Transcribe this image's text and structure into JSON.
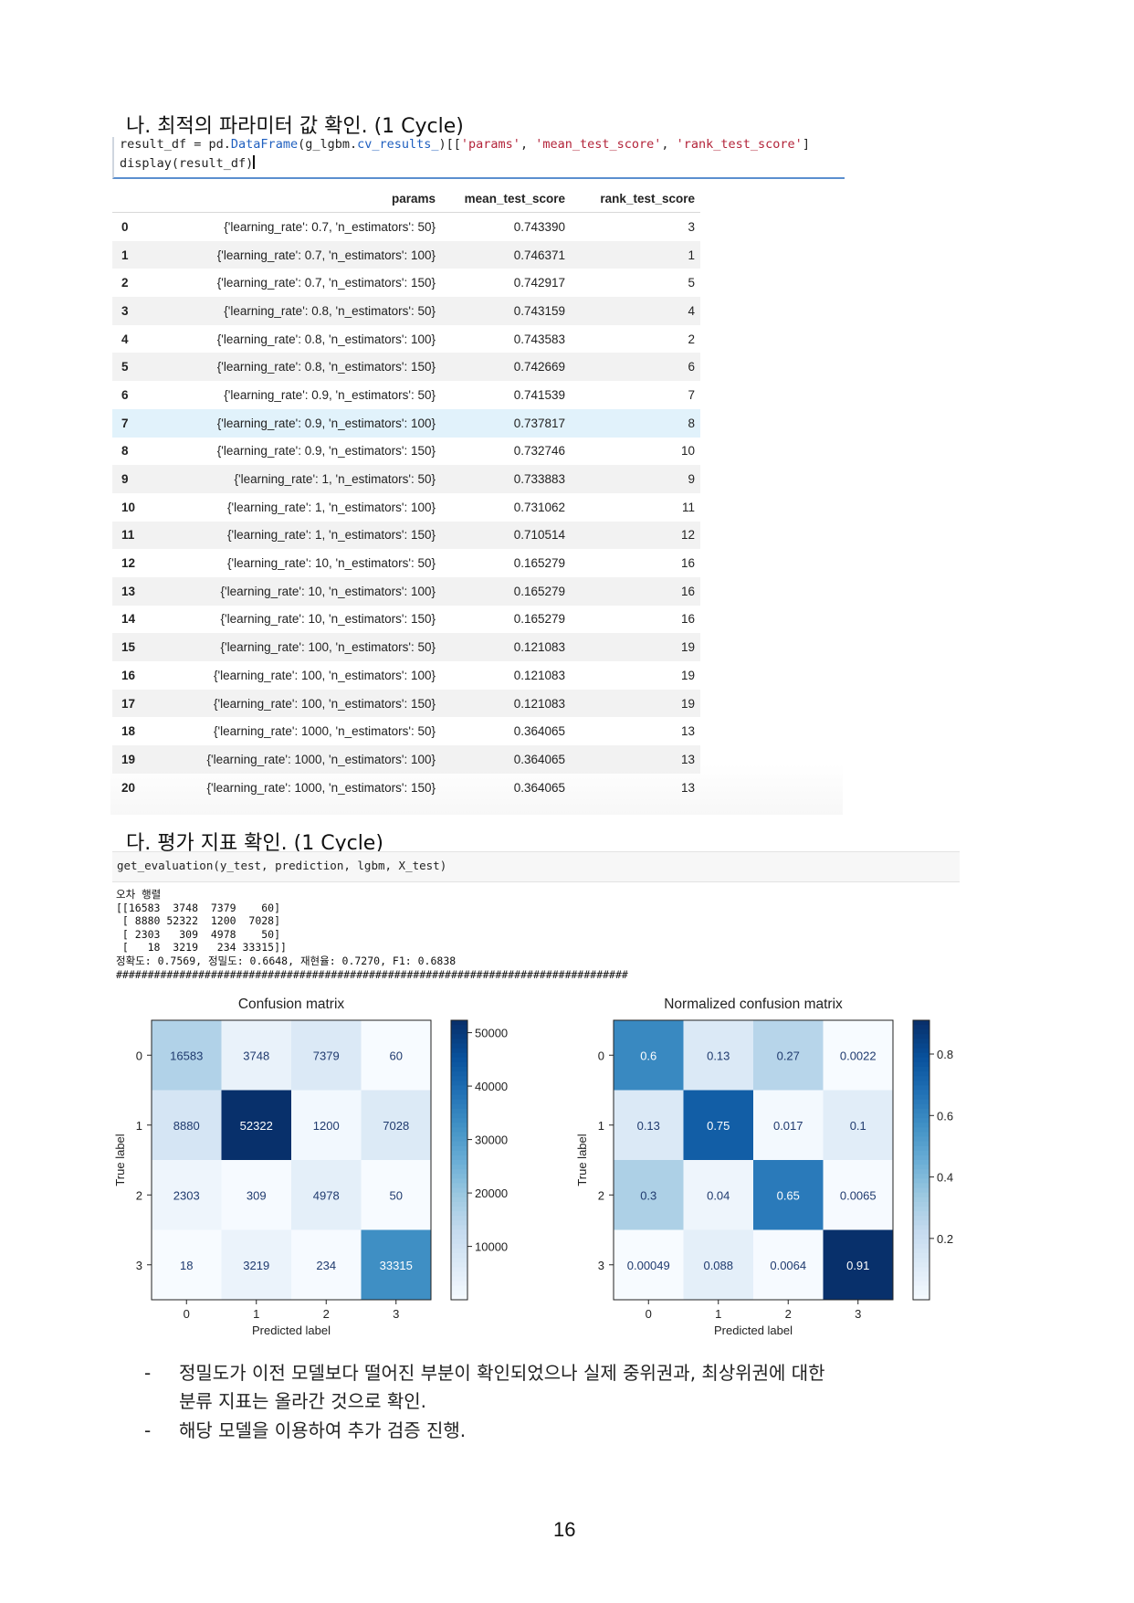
{
  "section_na": {
    "title": "나. 최적의 파라미터 값 확인. (1 Cycle)"
  },
  "code1": {
    "line1_a": "result_df = pd.",
    "line1_b": "DataFrame",
    "line1_c": "(g_lgbm.",
    "line1_d": "cv_results_",
    "line1_e": ")[[",
    "line1_f": "'params'",
    "line1_g": ", ",
    "line1_h": "'mean_test_score'",
    "line1_i": ", ",
    "line1_j": "'rank_test_score'",
    "line1_k": "]",
    "line2": "display(result_df)"
  },
  "table": {
    "headers": [
      "",
      "params",
      "mean_test_score",
      "rank_test_score"
    ],
    "rows": [
      [
        "0",
        "{'learning_rate': 0.7, 'n_estimators': 50}",
        "0.743390",
        "3"
      ],
      [
        "1",
        "{'learning_rate': 0.7, 'n_estimators': 100}",
        "0.746371",
        "1"
      ],
      [
        "2",
        "{'learning_rate': 0.7, 'n_estimators': 150}",
        "0.742917",
        "5"
      ],
      [
        "3",
        "{'learning_rate': 0.8, 'n_estimators': 50}",
        "0.743159",
        "4"
      ],
      [
        "4",
        "{'learning_rate': 0.8, 'n_estimators': 100}",
        "0.743583",
        "2"
      ],
      [
        "5",
        "{'learning_rate': 0.8, 'n_estimators': 150}",
        "0.742669",
        "6"
      ],
      [
        "6",
        "{'learning_rate': 0.9, 'n_estimators': 50}",
        "0.741539",
        "7"
      ],
      [
        "7",
        "{'learning_rate': 0.9, 'n_estimators': 100}",
        "0.737817",
        "8"
      ],
      [
        "8",
        "{'learning_rate': 0.9, 'n_estimators': 150}",
        "0.732746",
        "10"
      ],
      [
        "9",
        "{'learning_rate': 1, 'n_estimators': 50}",
        "0.733883",
        "9"
      ],
      [
        "10",
        "{'learning_rate': 1, 'n_estimators': 100}",
        "0.731062",
        "11"
      ],
      [
        "11",
        "{'learning_rate': 1, 'n_estimators': 150}",
        "0.710514",
        "12"
      ],
      [
        "12",
        "{'learning_rate': 10, 'n_estimators': 50}",
        "0.165279",
        "16"
      ],
      [
        "13",
        "{'learning_rate': 10, 'n_estimators': 100}",
        "0.165279",
        "16"
      ],
      [
        "14",
        "{'learning_rate': 10, 'n_estimators': 150}",
        "0.165279",
        "16"
      ],
      [
        "15",
        "{'learning_rate': 100, 'n_estimators': 50}",
        "0.121083",
        "19"
      ],
      [
        "16",
        "{'learning_rate': 100, 'n_estimators': 100}",
        "0.121083",
        "19"
      ],
      [
        "17",
        "{'learning_rate': 100, 'n_estimators': 150}",
        "0.121083",
        "19"
      ],
      [
        "18",
        "{'learning_rate': 1000, 'n_estimators': 50}",
        "0.364065",
        "13"
      ],
      [
        "19",
        "{'learning_rate': 1000, 'n_estimators': 100}",
        "0.364065",
        "13"
      ],
      [
        "20",
        "{'learning_rate': 1000, 'n_estimators': 150}",
        "0.364065",
        "13"
      ]
    ],
    "highlight_row": 7
  },
  "section_da": {
    "title": "다. 평가 지표 확인. (1 Cycle)"
  },
  "code2": {
    "line": "get_evaluation(y_test, prediction, lgbm, X_test)"
  },
  "output2": {
    "lines": [
      "오차 행렬",
      "[[16583  3748  7379    60]",
      " [ 8880 52322  1200  7028]",
      " [ 2303   309  4978    50]",
      " [   18  3219   234 33315]]",
      "정확도: 0.7569, 정밀도: 0.6648, 재현율: 0.7270, F1: 0.6838",
      "#################################################################################"
    ]
  },
  "chart_data": [
    {
      "type": "heatmap",
      "title": "Confusion matrix",
      "xlabel": "Predicted label",
      "ylabel": "True label",
      "x_ticks": [
        "0",
        "1",
        "2",
        "3"
      ],
      "y_ticks": [
        "0",
        "1",
        "2",
        "3"
      ],
      "values": [
        [
          16583,
          3748,
          7379,
          60
        ],
        [
          8880,
          52322,
          1200,
          7028
        ],
        [
          2303,
          309,
          4978,
          50
        ],
        [
          18,
          3219,
          234,
          33315
        ]
      ],
      "cell_labels": [
        [
          "16583",
          "3748",
          "7379",
          "60"
        ],
        [
          "8880",
          "52322",
          "1200",
          "7028"
        ],
        [
          "2303",
          "309",
          "4978",
          "50"
        ],
        [
          "18",
          "3219",
          "234",
          "33315"
        ]
      ],
      "colormap": "Blues",
      "vmin": 18,
      "vmax": 52322,
      "colorbar_ticks": [
        "10000",
        "20000",
        "30000",
        "40000",
        "50000"
      ],
      "colorbar_tick_values": [
        10000,
        20000,
        30000,
        40000,
        50000
      ]
    },
    {
      "type": "heatmap",
      "title": "Normalized confusion matrix",
      "xlabel": "Predicted label",
      "ylabel": "True label",
      "x_ticks": [
        "0",
        "1",
        "2",
        "3"
      ],
      "y_ticks": [
        "0",
        "1",
        "2",
        "3"
      ],
      "values": [
        [
          0.6,
          0.13,
          0.27,
          0.0022
        ],
        [
          0.13,
          0.75,
          0.017,
          0.1
        ],
        [
          0.3,
          0.04,
          0.65,
          0.0065
        ],
        [
          0.00049,
          0.088,
          0.0064,
          0.91
        ]
      ],
      "cell_labels": [
        [
          "0.6",
          "0.13",
          "0.27",
          "0.0022"
        ],
        [
          "0.13",
          "0.75",
          "0.017",
          "0.1"
        ],
        [
          "0.3",
          "0.04",
          "0.65",
          "0.0065"
        ],
        [
          "0.00049",
          "0.088",
          "0.0064",
          "0.91"
        ]
      ],
      "colormap": "Blues",
      "vmin": 0.00049,
      "vmax": 0.91,
      "colorbar_ticks": [
        "0.2",
        "0.4",
        "0.6",
        "0.8"
      ],
      "colorbar_tick_values": [
        0.2,
        0.4,
        0.6,
        0.8
      ]
    }
  ],
  "bullets": [
    {
      "dash": "-",
      "text": "정밀도가 이전 모델보다 떨어진 부분이 확인되었으나 실제 중위권과, 최상위권에 대한"
    },
    {
      "dash": "",
      "text": "분류 지표는 올라간 것으로 확인."
    },
    {
      "dash": "-",
      "text": "해당 모델을 이용하여 추가 검증 진행."
    }
  ],
  "page_number": "16"
}
